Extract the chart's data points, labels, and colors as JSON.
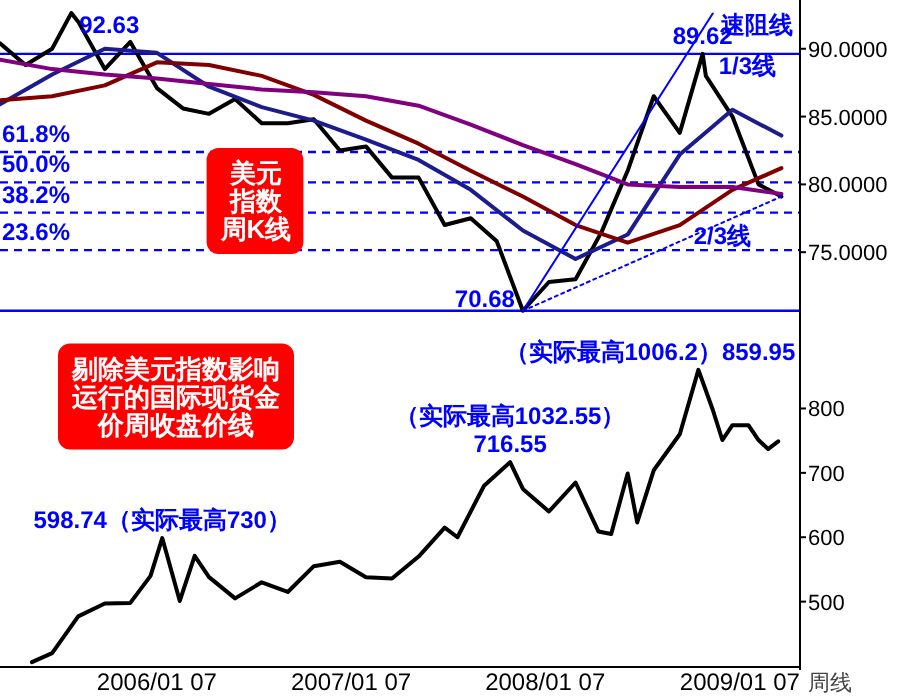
{
  "chart_data": [
    {
      "type": "line",
      "xlim": [
        "2005-03-18",
        "2009-04-30"
      ],
      "ylim": [
        70.0,
        93.3
      ],
      "yticks": [
        {
          "value": 90,
          "label": "90.0000"
        },
        {
          "value": 85,
          "label": "85.0000"
        },
        {
          "value": 80,
          "label": "80.0000"
        },
        {
          "value": 75,
          "label": "75.0000"
        }
      ],
      "tick_labels": "y",
      "series": [
        {
          "color": "#000000",
          "x": [
            "2005-03-18",
            "2005-05-05",
            "2005-06-24",
            "2005-07-30",
            "2005-08-12",
            "2005-10-01",
            "2005-11-18",
            "2006-01-07",
            "2006-02-25",
            "2006-04-15",
            "2006-06-03",
            "2006-07-23",
            "2006-09-10",
            "2006-10-29",
            "2006-12-17",
            "2007-02-04",
            "2007-03-25",
            "2007-05-14",
            "2007-07-02",
            "2007-08-20",
            "2007-10-08",
            "2007-11-26",
            "2008-01-14",
            "2008-03-04",
            "2008-04-22",
            "2008-06-10",
            "2008-07-29",
            "2008-09-16",
            "2008-10-29",
            "2008-11-04",
            "2008-12-24",
            "2009-02-11",
            "2009-03-26"
          ],
          "values": [
            90.4,
            88.8,
            90.0,
            92.63,
            92.0,
            88.5,
            90.5,
            87.1,
            85.6,
            85.2,
            86.3,
            84.5,
            84.5,
            84.8,
            82.5,
            82.8,
            80.5,
            80.5,
            77.0,
            77.5,
            75.8,
            70.68,
            72.8,
            73.0,
            76.5,
            81.0,
            86.5,
            83.8,
            89.62,
            88.0,
            85.0,
            80.0,
            79.1
          ]
        },
        {
          "color": "#1c1c8c",
          "x": [
            "2005-03-18",
            "2005-06-24",
            "2005-10-01",
            "2006-01-07",
            "2006-04-15",
            "2006-07-23",
            "2006-10-29",
            "2007-02-04",
            "2007-05-14",
            "2007-08-20",
            "2007-11-26",
            "2008-03-04",
            "2008-06-10",
            "2008-09-16",
            "2008-12-24",
            "2009-03-26"
          ],
          "values": [
            85.9,
            88.1,
            90.0,
            89.7,
            87.2,
            85.7,
            84.7,
            83.3,
            81.8,
            79.6,
            76.6,
            74.5,
            76.3,
            82.2,
            85.5,
            83.6
          ]
        },
        {
          "color": "#800000",
          "x": [
            "2005-03-18",
            "2005-06-24",
            "2005-10-01",
            "2006-01-07",
            "2006-04-15",
            "2006-07-23",
            "2006-10-29",
            "2007-02-04",
            "2007-05-14",
            "2007-08-20",
            "2007-11-26",
            "2008-03-04",
            "2008-06-10",
            "2008-09-16",
            "2008-12-24",
            "2009-03-26"
          ],
          "values": [
            86.2,
            86.5,
            87.3,
            89.0,
            88.8,
            88.0,
            86.6,
            84.7,
            83.0,
            81.0,
            79.1,
            77.0,
            75.7,
            77.0,
            79.6,
            81.2
          ]
        },
        {
          "color": "#800080",
          "x": [
            "2005-03-18",
            "2005-06-24",
            "2005-10-01",
            "2006-01-07",
            "2006-04-15",
            "2006-07-23",
            "2006-10-29",
            "2007-02-04",
            "2007-05-14",
            "2007-08-20",
            "2007-11-26",
            "2008-03-04",
            "2008-06-10",
            "2008-09-16",
            "2008-12-24",
            "2009-03-26"
          ],
          "values": [
            89.2,
            88.5,
            88.1,
            87.8,
            87.4,
            87.0,
            86.8,
            86.5,
            85.8,
            84.4,
            82.9,
            81.5,
            80.0,
            79.8,
            79.8,
            79.3
          ]
        },
        {
          "color": "#0000ff",
          "x": [
            "2007-11-26",
            "2008-11-17"
          ],
          "values": [
            70.68,
            92.6
          ]
        },
        {
          "color": "#0000ff",
          "line_style": "dotted",
          "x": [
            "2007-11-26",
            "2009-03-26"
          ],
          "values": [
            70.68,
            79.1
          ]
        }
      ],
      "ref_lines": [
        {
          "axis": "y",
          "value": 89.62,
          "color": "#0000ff",
          "line_style": "solid"
        },
        {
          "axis": "y",
          "value": 82.39,
          "color": "#0000ff",
          "line_style": "dashed"
        },
        {
          "axis": "y",
          "value": 80.15,
          "color": "#0000ff",
          "line_style": "dashed"
        },
        {
          "axis": "y",
          "value": 77.92,
          "color": "#0000ff",
          "line_style": "dashed"
        },
        {
          "axis": "y",
          "value": 75.15,
          "color": "#0000ff",
          "line_style": "dashed"
        },
        {
          "axis": "y",
          "value": 70.68,
          "color": "#0000ff",
          "line_style": "solid"
        }
      ],
      "annotations": [
        {
          "text": "92.63",
          "x": "2005-07-30",
          "y": 92.63
        },
        {
          "text": "89.62",
          "x": "2008-10-29",
          "y": 89.62
        },
        {
          "text": "70.68",
          "x": "2007-11-26",
          "y": 70.68
        },
        {
          "text": "速阻线",
          "x": "2008-11-17",
          "y": 92.6
        },
        "1/3线",
        {
          "text": "2/3线",
          "x": "2008-12-05",
          "y": 74.9
        },
        {
          "text": "61.8%",
          "x": "2005-03-18",
          "y": 82.39
        },
        {
          "text": "50.0%",
          "x": "2005-03-18",
          "y": 80.15
        },
        {
          "text": "38.2%",
          "x": "2005-03-18",
          "y": 77.92
        },
        {
          "text": "23.6%",
          "x": "2005-03-18",
          "y": 75.15
        },
        "美元指数周K线"
      ]
    },
    {
      "type": "line",
      "xlim": [
        "2005-03-18",
        "2009-04-30"
      ],
      "ylim": [
        400,
        925
      ],
      "yticks": [
        500,
        600,
        700,
        800
      ],
      "xlabel": "周线",
      "xticks": [
        {
          "value": "2006-01-07",
          "label": "2006/01 07"
        },
        {
          "value": "2007-01-07",
          "label": "2007/01 07"
        },
        {
          "value": "2008-01-07",
          "label": "2008/01 07"
        },
        {
          "value": "2009-01-07",
          "label": "2009/01 07"
        }
      ],
      "series": [
        {
          "color": "#000000",
          "x": [
            "2005-05-17",
            "2005-06-24",
            "2005-08-12",
            "2005-10-01",
            "2005-11-18",
            "2005-12-26",
            "2006-01-17",
            "2006-02-19",
            "2006-03-19",
            "2006-04-15",
            "2006-06-03",
            "2006-07-23",
            "2006-09-10",
            "2006-10-29",
            "2006-12-17",
            "2007-02-04",
            "2007-03-25",
            "2007-05-14",
            "2007-07-02",
            "2007-07-26",
            "2007-09-14",
            "2007-11-02",
            "2007-11-26",
            "2008-01-14",
            "2008-03-04",
            "2008-04-16",
            "2008-05-10",
            "2008-06-10",
            "2008-06-28",
            "2008-07-29",
            "2008-09-16",
            "2008-10-21",
            "2008-11-17",
            "2008-12-05",
            "2008-12-24",
            "2009-01-23",
            "2009-02-11",
            "2009-03-01",
            "2009-03-20"
          ],
          "values": [
            406,
            420,
            477,
            497,
            498,
            540,
            598.74,
            501,
            571,
            538,
            505,
            530,
            515,
            555,
            562,
            538,
            536,
            570,
            615,
            600,
            680,
            716.55,
            675,
            640,
            685,
            609,
            605,
            699,
            623,
            704,
            760,
            859.95,
            798,
            751,
            774,
            774,
            751,
            737,
            749
          ]
        }
      ],
      "annotations": [
        {
          "text": "598.74（实际最高730）",
          "x": "2006-01-17",
          "y": 598.74
        },
        {
          "text": "（实际最高1032.55）\n716.55",
          "x": "2007-11-02",
          "y": 716.55
        },
        {
          "text": "（实际最高1006.2）859.95",
          "x": "2008-10-21",
          "y": 859.95
        },
        "剔除美元指数影响运行的国际现货金价周收盘价线"
      ]
    }
  ]
}
